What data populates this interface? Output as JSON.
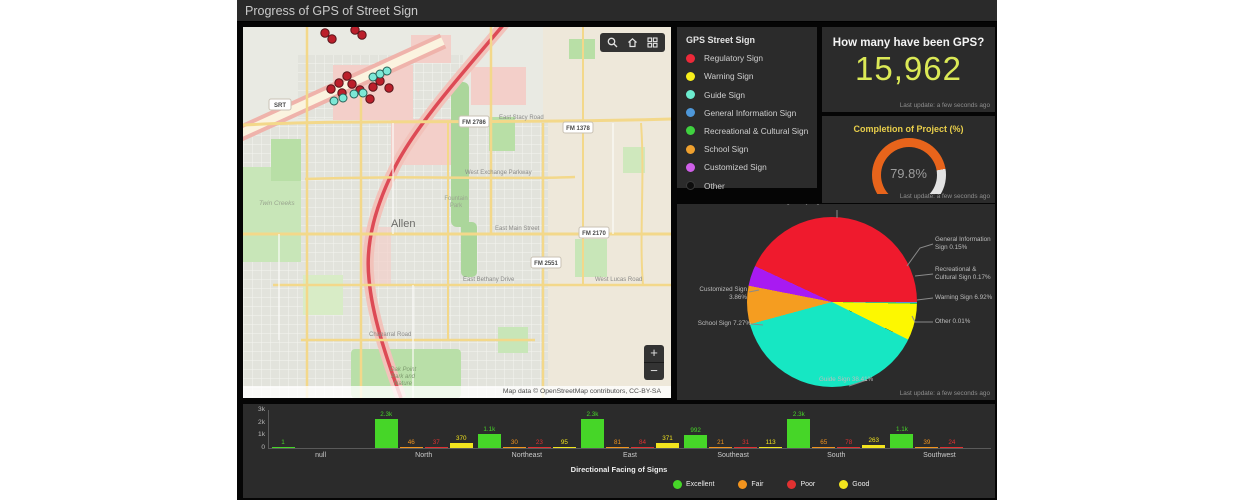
{
  "header": {
    "title": "Progress of GPS of Street Sign"
  },
  "map": {
    "attribution": "Map data © OpenStreetMap contributors, CC-BY-SA",
    "city": "Allen",
    "places": {
      "twin_creeks": "Twin Creeks",
      "fountain_park_1": "Fountain",
      "fountain_park_2": "Park",
      "oak_point_1": "Oak Point",
      "oak_point_2": "Park and",
      "oak_point_3": "Nature"
    },
    "roads": {
      "stacy": "East Stacy Road",
      "exchange": "West Exchange Parkway",
      "main": "East Main Street",
      "bethany": "East Bethany Drive",
      "lucas": "West Lucas Road",
      "chaparral": "Chaparral Road"
    },
    "shields": {
      "srt": "SRT",
      "fm2786": "FM 2786",
      "fm1378": "FM 1378",
      "fm2170": "FM 2170",
      "fm2551": "FM 2551"
    },
    "icons": {
      "toolbar": [
        "search-icon",
        "home-icon",
        "basemap-icon"
      ],
      "zoom_in": "+",
      "zoom_out": "−"
    }
  },
  "legend": {
    "title": "GPS Street Sign",
    "items": [
      {
        "label": "Regulatory Sign",
        "color": "#ed2939"
      },
      {
        "label": "Warning Sign",
        "color": "#f7ee1b"
      },
      {
        "label": "Guide Sign",
        "color": "#6ceccf"
      },
      {
        "label": "General Information Sign",
        "color": "#4e97d9"
      },
      {
        "label": "Recreational & Cultural Sign",
        "color": "#3fd13f"
      },
      {
        "label": "School Sign",
        "color": "#efa02e"
      },
      {
        "label": "Customized Sign",
        "color": "#cf5fe8"
      },
      {
        "label": "Other",
        "color": "#0d0d0d"
      }
    ]
  },
  "indicator": {
    "title": "How many have been GPS?",
    "value": "15,962",
    "value_color": "#dbe956",
    "last_update": "Last update: a few seconds ago"
  },
  "gauge": {
    "title": "Completion of Project (%)",
    "value": "79.8%",
    "percent": 79.8,
    "arc_color": "#e8641b",
    "track_color": "#e3e3e3",
    "last_update": "Last update: a few seconds ago"
  },
  "pie": {
    "chart_data": {
      "type": "pie",
      "start_angle_deg": 295,
      "slices": [
        {
          "label": "Regulatory Sign",
          "pct": 43.0,
          "pct_display": "43%",
          "color": "#ef1a2d"
        },
        {
          "label": "General Information Sign",
          "pct": 0.15,
          "pct_display": "0.15%",
          "color": "#4e97d9"
        },
        {
          "label": "Recreational & Cultural Sign",
          "pct": 0.17,
          "pct_display": "0.17%",
          "color": "#3fd13f"
        },
        {
          "label": "Warning Sign",
          "pct": 6.92,
          "pct_display": "6.92%",
          "color": "#fdf800"
        },
        {
          "label": "Other",
          "pct": 0.01,
          "pct_display": "0.01%",
          "color": "#111111"
        },
        {
          "label": "Guide Sign",
          "pct": 38.41,
          "pct_display": "38.41%",
          "color": "#16e7c3"
        },
        {
          "label": "School Sign",
          "pct": 7.27,
          "pct_display": "7.27%",
          "color": "#f59d20"
        },
        {
          "label": "Customized Sign",
          "pct": 3.86,
          "pct_display": "3.86%",
          "color": "#a81af2"
        }
      ]
    },
    "last_update": "Last update: a few seconds ago"
  },
  "bar": {
    "chart_data": {
      "type": "bar",
      "title": "Directional Facing of Signs",
      "categories": [
        "null",
        "North",
        "Northeast",
        "East",
        "Southeast",
        "South",
        "Southwest"
      ],
      "ymax": 3000,
      "yticks": [
        "3k",
        "2k",
        "1k",
        "0"
      ],
      "series": [
        {
          "name": "Excellent",
          "color": "#46d628",
          "values": [
            1,
            2300,
            1100,
            2300,
            992,
            2300,
            1100
          ],
          "labels": [
            "1",
            "2.3k",
            "1.1k",
            "2.3k",
            "992",
            "2.3k",
            "1.1k"
          ]
        },
        {
          "name": "Fair",
          "color": "#f2941e",
          "values": [
            null,
            46,
            30,
            81,
            21,
            65,
            39
          ],
          "labels": [
            "",
            "46",
            "30",
            "81",
            "21",
            "65",
            "39"
          ]
        },
        {
          "name": "Poor",
          "color": "#e03131",
          "values": [
            null,
            37,
            23,
            84,
            31,
            78,
            24
          ],
          "labels": [
            "",
            "37",
            "23",
            "84",
            "31",
            "78",
            "24"
          ]
        },
        {
          "name": "Good",
          "color": "#f2e41e",
          "values": [
            null,
            370,
            95,
            371,
            113,
            263,
            null
          ],
          "labels": [
            "",
            "370",
            "95",
            "371",
            "113",
            "263",
            ""
          ]
        }
      ],
      "legend_position": "bottom"
    }
  }
}
